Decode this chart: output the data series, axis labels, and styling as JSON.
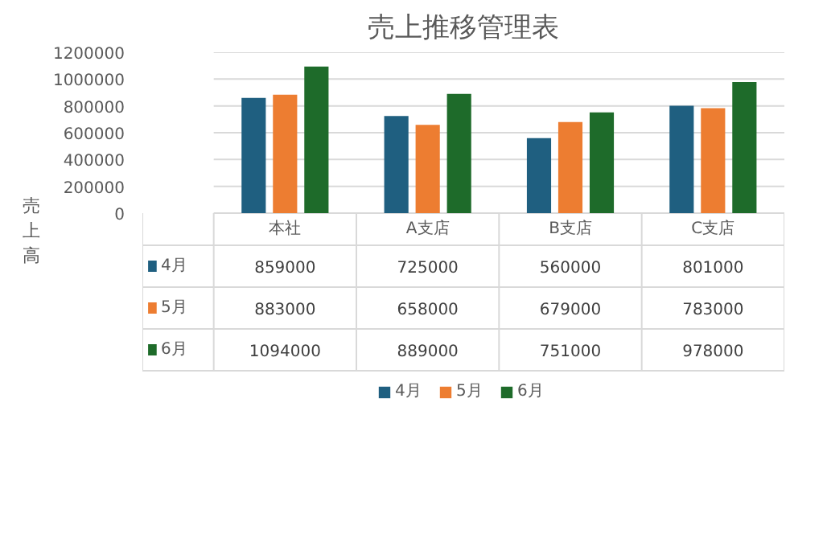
{
  "chart_data": {
    "type": "bar",
    "title": "売上推移管理表",
    "ylabel": "売上高",
    "categories": [
      "本社",
      "A支店",
      "B支店",
      "C支店"
    ],
    "series": [
      {
        "name": "4月",
        "color": "#1f5f80",
        "values": [
          859000,
          725000,
          560000,
          801000
        ]
      },
      {
        "name": "5月",
        "color": "#ed7d31",
        "values": [
          883000,
          658000,
          679000,
          783000
        ]
      },
      {
        "name": "6月",
        "color": "#1e6b2a",
        "values": [
          1094000,
          889000,
          751000,
          978000
        ]
      }
    ],
    "ylim": [
      0,
      1200000
    ],
    "yticks": [
      0,
      200000,
      400000,
      600000,
      800000,
      1000000,
      1200000
    ],
    "grid": "y",
    "legend": "bottom",
    "data_labels": true
  }
}
